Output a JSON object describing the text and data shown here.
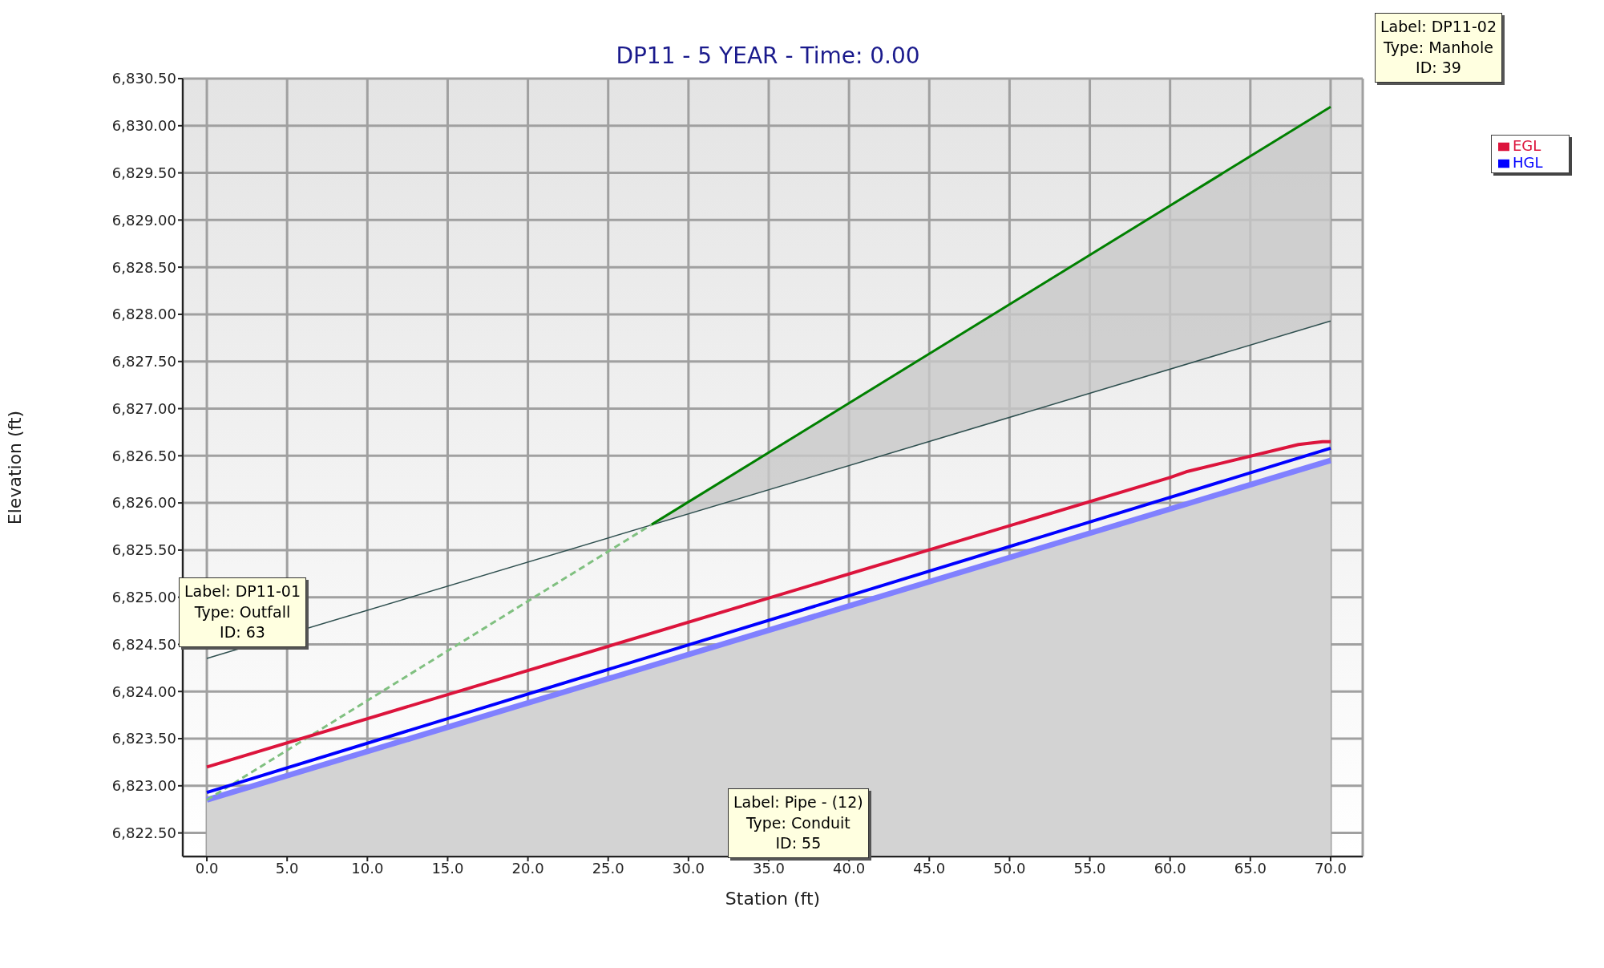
{
  "chart_data": {
    "type": "line",
    "title": "DP11 - 5 YEAR - Time: 0.00",
    "xlabel": "Station (ft)",
    "ylabel": "Elevation (ft)",
    "xlim": [
      -1.5,
      72
    ],
    "ylim": [
      6822.25,
      6830.5
    ],
    "xticks": [
      {
        "value": 0,
        "label": "0.0"
      },
      {
        "value": 5,
        "label": "5.0"
      },
      {
        "value": 10,
        "label": "10.0"
      },
      {
        "value": 15,
        "label": "15.0"
      },
      {
        "value": 20,
        "label": "20.0"
      },
      {
        "value": 25,
        "label": "25.0"
      },
      {
        "value": 30,
        "label": "30.0"
      },
      {
        "value": 35,
        "label": "35.0"
      },
      {
        "value": 40,
        "label": "40.0"
      },
      {
        "value": 45,
        "label": "45.0"
      },
      {
        "value": 50,
        "label": "50.0"
      },
      {
        "value": 55,
        "label": "55.0"
      },
      {
        "value": 60,
        "label": "60.0"
      },
      {
        "value": 65,
        "label": "65.0"
      },
      {
        "value": 70,
        "label": "70.0"
      }
    ],
    "yticks": [
      {
        "value": 6822.5,
        "label": "6,822.50"
      },
      {
        "value": 6823,
        "label": "6,823.00"
      },
      {
        "value": 6823.5,
        "label": "6,823.50"
      },
      {
        "value": 6824,
        "label": "6,824.00"
      },
      {
        "value": 6824.5,
        "label": "6,824.50"
      },
      {
        "value": 6825,
        "label": "6,825.00"
      },
      {
        "value": 6825.5,
        "label": "6,825.50"
      },
      {
        "value": 6826,
        "label": "6,826.00"
      },
      {
        "value": 6826.5,
        "label": "6,826.50"
      },
      {
        "value": 6827,
        "label": "6,827.00"
      },
      {
        "value": 6827.5,
        "label": "6,827.50"
      },
      {
        "value": 6828,
        "label": "6,828.00"
      },
      {
        "value": 6828.5,
        "label": "6,828.50"
      },
      {
        "value": 6829,
        "label": "6,829.00"
      },
      {
        "value": 6829.5,
        "label": "6,829.50"
      },
      {
        "value": 6830,
        "label": "6,830.00"
      },
      {
        "value": 6830.5,
        "label": "6,830.50"
      }
    ],
    "grid": true,
    "legend": "top right",
    "marker": "none",
    "series": [
      {
        "type": "area",
        "color": "#8080ff",
        "x": [
          0,
          70
        ],
        "values": [
          6822.85,
          6826.45
        ]
      },
      {
        "type": "line",
        "color": "#2f4f4f",
        "x": [
          0,
          70
        ],
        "values": [
          6824.35,
          6827.93
        ]
      },
      {
        "type": "line",
        "color": "#008000",
        "x": [
          27.7,
          70
        ],
        "values": [
          6825.77,
          6830.2
        ],
        "lower": [
          6825.77,
          6827.93
        ],
        "upper": [
          6825.77,
          6830.2
        ]
      },
      {
        "type": "line",
        "color": "#80c080",
        "line_style": "dashed",
        "x": [
          0,
          27.7
        ],
        "values": [
          6822.85,
          6825.77
        ]
      },
      {
        "name": "EGL",
        "type": "line",
        "color": "#dc143c",
        "x": [
          0,
          60,
          61,
          68,
          69.5,
          70
        ],
        "values": [
          6823.2,
          6826.27,
          6826.33,
          6826.62,
          6826.65,
          6826.65
        ]
      },
      {
        "name": "HGL",
        "type": "line",
        "color": "#0000ff",
        "x": [
          0,
          70
        ],
        "values": [
          6822.93,
          6826.58
        ]
      }
    ],
    "annotations": [
      "Label: DP11-01\nType: Outfall\nID: 63",
      "Label: Pipe - (12)\nType: Conduit\nID: 55",
      "Label: DP11-02\nType: Manhole\nID: 39"
    ]
  }
}
